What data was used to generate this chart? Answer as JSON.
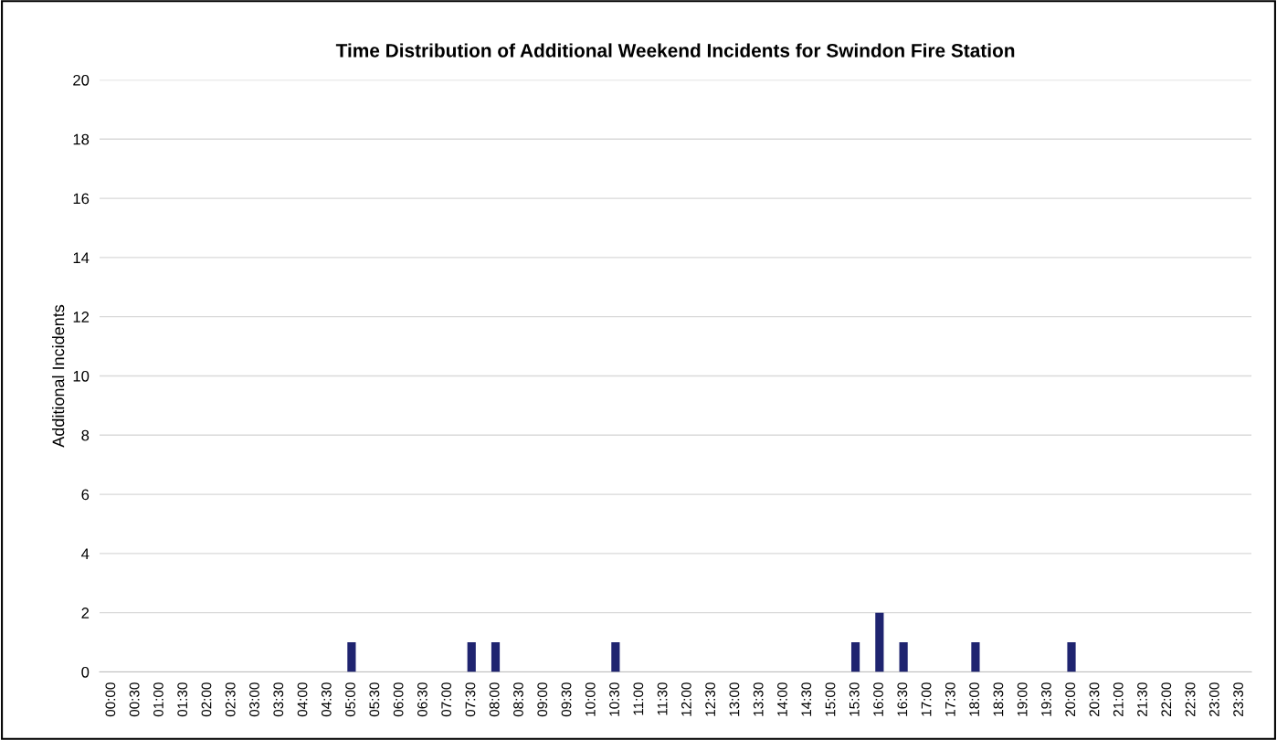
{
  "chart_data": {
    "type": "bar",
    "title": "Time Distribution of Additional Weekend Incidents for Swindon Fire Station",
    "ylabel": "Additional Incidents",
    "categories": [
      "00:00",
      "00:30",
      "01:00",
      "01:30",
      "02:00",
      "02:30",
      "03:00",
      "03:30",
      "04:00",
      "04:30",
      "05:00",
      "05:30",
      "06:00",
      "06:30",
      "07:00",
      "07:30",
      "08:00",
      "08:30",
      "09:00",
      "09:30",
      "10:00",
      "10:30",
      "11:00",
      "11:30",
      "12:00",
      "12:30",
      "13:00",
      "13:30",
      "14:00",
      "14:30",
      "15:00",
      "15:30",
      "16:00",
      "16:30",
      "17:00",
      "17:30",
      "18:00",
      "18:30",
      "19:00",
      "19:30",
      "20:00",
      "20:30",
      "21:00",
      "21:30",
      "22:00",
      "22:30",
      "23:00",
      "23:30"
    ],
    "values": [
      0,
      0,
      0,
      0,
      0,
      0,
      0,
      0,
      0,
      0,
      1,
      0,
      0,
      0,
      0,
      1,
      1,
      0,
      0,
      0,
      0,
      1,
      0,
      0,
      0,
      0,
      0,
      0,
      0,
      0,
      0,
      1,
      2,
      1,
      0,
      0,
      1,
      0,
      0,
      0,
      1,
      0,
      0,
      0,
      0,
      0,
      0,
      0
    ],
    "color": "#1f2470",
    "ylim": [
      0,
      20
    ],
    "yticks": [
      0,
      2,
      4,
      6,
      8,
      10,
      12,
      14,
      16,
      18,
      20
    ],
    "grid": "y",
    "legend": false
  }
}
